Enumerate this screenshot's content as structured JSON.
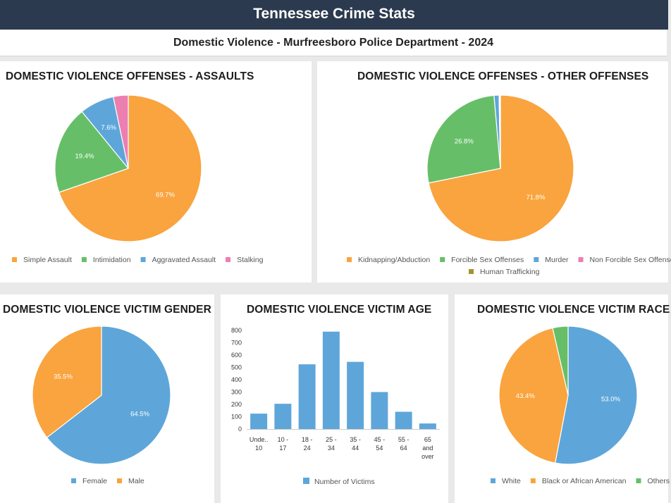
{
  "header": {
    "title": "Tennessee Crime Stats",
    "subtitle": "Domestic Violence - Murfreesboro Police Department - 2024"
  },
  "colors": {
    "orange": "#f9a43e",
    "green": "#66bf68",
    "blue": "#5ea6da",
    "pink": "#ec7fb0",
    "olive": "#a8922f"
  },
  "chart_data": [
    {
      "id": "assaults",
      "type": "pie",
      "title": "DOMESTIC VIOLENCE OFFENSES - ASSAULTS",
      "labels": [
        "Simple Assault",
        "Intimidation",
        "Aggravated Assault",
        "Stalking"
      ],
      "values": [
        69.7,
        19.4,
        7.6,
        3.3
      ],
      "data_labels": [
        "69.7%",
        "19.4%",
        "7.6%",
        ""
      ],
      "colors": [
        "#f9a43e",
        "#66bf68",
        "#5ea6da",
        "#ec7fb0"
      ],
      "legend": "bottom"
    },
    {
      "id": "other",
      "type": "pie",
      "title": "DOMESTIC VIOLENCE OFFENSES - OTHER OFFENSES",
      "labels": [
        "Kidnapping/Abduction",
        "Forcible Sex Offenses",
        "Murder",
        "Non Forcible Sex Offenses",
        "Human Trafficking"
      ],
      "values": [
        71.8,
        26.8,
        1.1,
        0.2,
        0.1
      ],
      "data_labels": [
        "71.8%",
        "26.8%",
        "",
        "",
        ""
      ],
      "colors": [
        "#f9a43e",
        "#66bf68",
        "#5ea6da",
        "#ec7fb0",
        "#a8922f"
      ],
      "legend": "bottom"
    },
    {
      "id": "gender",
      "type": "pie",
      "title": "DOMESTIC VIOLENCE VICTIM GENDER",
      "labels": [
        "Female",
        "Male"
      ],
      "values": [
        64.5,
        35.5
      ],
      "data_labels": [
        "64.5%",
        "35.5%"
      ],
      "colors": [
        "#5ea6da",
        "#f9a43e"
      ],
      "legend": "bottom"
    },
    {
      "id": "age",
      "type": "bar",
      "title": "DOMESTIC VIOLENCE VICTIM AGE",
      "categories": [
        [
          "Unde..",
          "10"
        ],
        [
          "10 -",
          "17"
        ],
        [
          "18 -",
          "24"
        ],
        [
          "25 -",
          "34"
        ],
        [
          "35 -",
          "44"
        ],
        [
          "45 -",
          "54"
        ],
        [
          "55 -",
          "64"
        ],
        [
          "65",
          "and",
          "over"
        ]
      ],
      "series": [
        {
          "name": "Number of Victims",
          "values": [
            125,
            205,
            525,
            790,
            545,
            300,
            140,
            45
          ],
          "color": "#5ea6da"
        }
      ],
      "ylim": [
        0,
        800
      ],
      "yticks": [
        0,
        100,
        200,
        300,
        400,
        500,
        600,
        700,
        800
      ],
      "legend": "bottom"
    },
    {
      "id": "race",
      "type": "pie",
      "title": "DOMESTIC VIOLENCE VICTIM RACE",
      "labels": [
        "White",
        "Black or African American",
        "Others"
      ],
      "values": [
        53.0,
        43.4,
        3.6
      ],
      "data_labels": [
        "53.0%",
        "43.4%",
        ""
      ],
      "colors": [
        "#5ea6da",
        "#f9a43e",
        "#66bf68"
      ],
      "legend": "bottom"
    }
  ]
}
